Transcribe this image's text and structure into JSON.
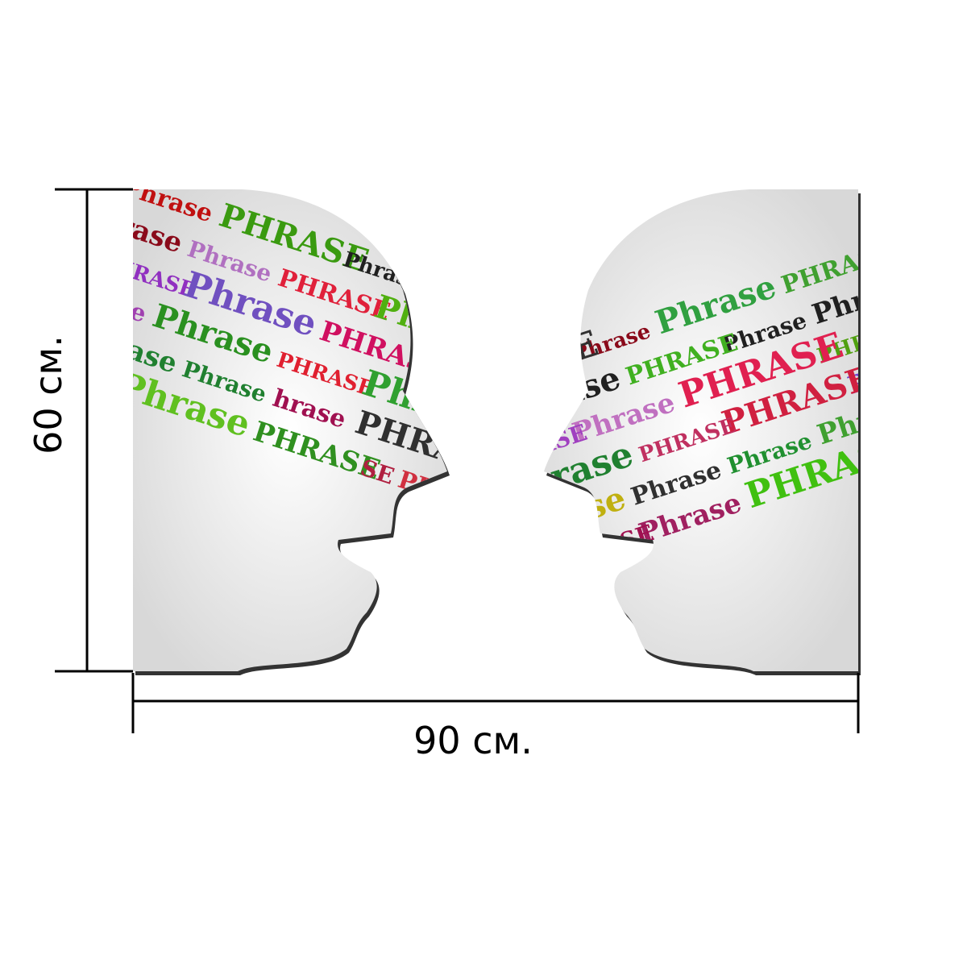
{
  "dimensions": {
    "height_label": "60 см.",
    "width_label": "90 см."
  },
  "left_head": {
    "words": [
      {
        "text": "Phrase",
        "color": "#c01010"
      },
      {
        "text": "PHRASE",
        "color": "#3a9a10"
      },
      {
        "text": "Phrase",
        "color": "#202020"
      },
      {
        "text": "PHRASE",
        "color": "#40b020"
      },
      {
        "text": "Phrase",
        "color": "#8a0a1a"
      },
      {
        "text": "Phrase",
        "color": "#b070c0"
      },
      {
        "text": "PHRASE",
        "color": "#e0203a"
      },
      {
        "text": "Phrase",
        "color": "#50b010"
      },
      {
        "text": "PHRASE",
        "color": "#9030c0"
      },
      {
        "text": "Phrase",
        "color": "#7050c0"
      },
      {
        "text": "PHRASE",
        "color": "#d01060"
      },
      {
        "text": "PHRASE",
        "color": "#d02020"
      },
      {
        "text": "Phrase",
        "color": "#a040b0"
      },
      {
        "text": "Phrase",
        "color": "#2a9020"
      },
      {
        "text": "PHRASE",
        "color": "#e02030"
      },
      {
        "text": "Phrase",
        "color": "#30a030"
      },
      {
        "text": "Phrase",
        "color": "#208030"
      },
      {
        "text": "Phrase",
        "color": "#208030"
      },
      {
        "text": "hrase",
        "color": "#a01050"
      },
      {
        "text": "PHRASE",
        "color": "#303030"
      },
      {
        "text": "PHRASE",
        "color": "#202020"
      },
      {
        "text": "Phrase",
        "color": "#60c020"
      },
      {
        "text": "PHRASE",
        "color": "#309020"
      },
      {
        "text": "SE",
        "color": "#b02040"
      },
      {
        "text": "PHRASE",
        "color": "#d03040"
      }
    ]
  },
  "right_head": {
    "words": [
      {
        "text": "PHRASE",
        "color": "#40a030"
      },
      {
        "text": "Phrase",
        "color": "#30a040"
      },
      {
        "text": "Phrase",
        "color": "#8a0a1a"
      },
      {
        "text": "PHRASE",
        "color": "#303030"
      },
      {
        "text": "Phrase",
        "color": "#202020"
      },
      {
        "text": "Phrase",
        "color": "#202020"
      },
      {
        "text": "PHRASE",
        "color": "#40b020"
      },
      {
        "text": "Phrase",
        "color": "#202020"
      },
      {
        "text": "PHRASE",
        "color": "#50a010"
      },
      {
        "text": "PHRASE",
        "color": "#e02050"
      },
      {
        "text": "Phrase",
        "color": "#c070c0"
      },
      {
        "text": "PHRASE",
        "color": "#a040c0"
      },
      {
        "text": "PHRASE",
        "color": "#7040d0"
      },
      {
        "text": "PHRASE",
        "color": "#d02040"
      },
      {
        "text": "PHRASE",
        "color": "#c03060"
      },
      {
        "text": "Phrase",
        "color": "#208030"
      },
      {
        "text": "Phrase",
        "color": "#40a030"
      },
      {
        "text": "Phrase",
        "color": "#209030"
      },
      {
        "text": "Phrase",
        "color": "#303030"
      },
      {
        "text": "Phrase",
        "color": "#c0b010"
      },
      {
        "text": "Phrase",
        "color": "#202020"
      },
      {
        "text": "PHRASE",
        "color": "#40c010"
      },
      {
        "text": "Phrase",
        "color": "#a02060"
      },
      {
        "text": "PHRASE",
        "color": "#a01050"
      },
      {
        "text": "Phras",
        "color": "#c090c0"
      }
    ]
  }
}
